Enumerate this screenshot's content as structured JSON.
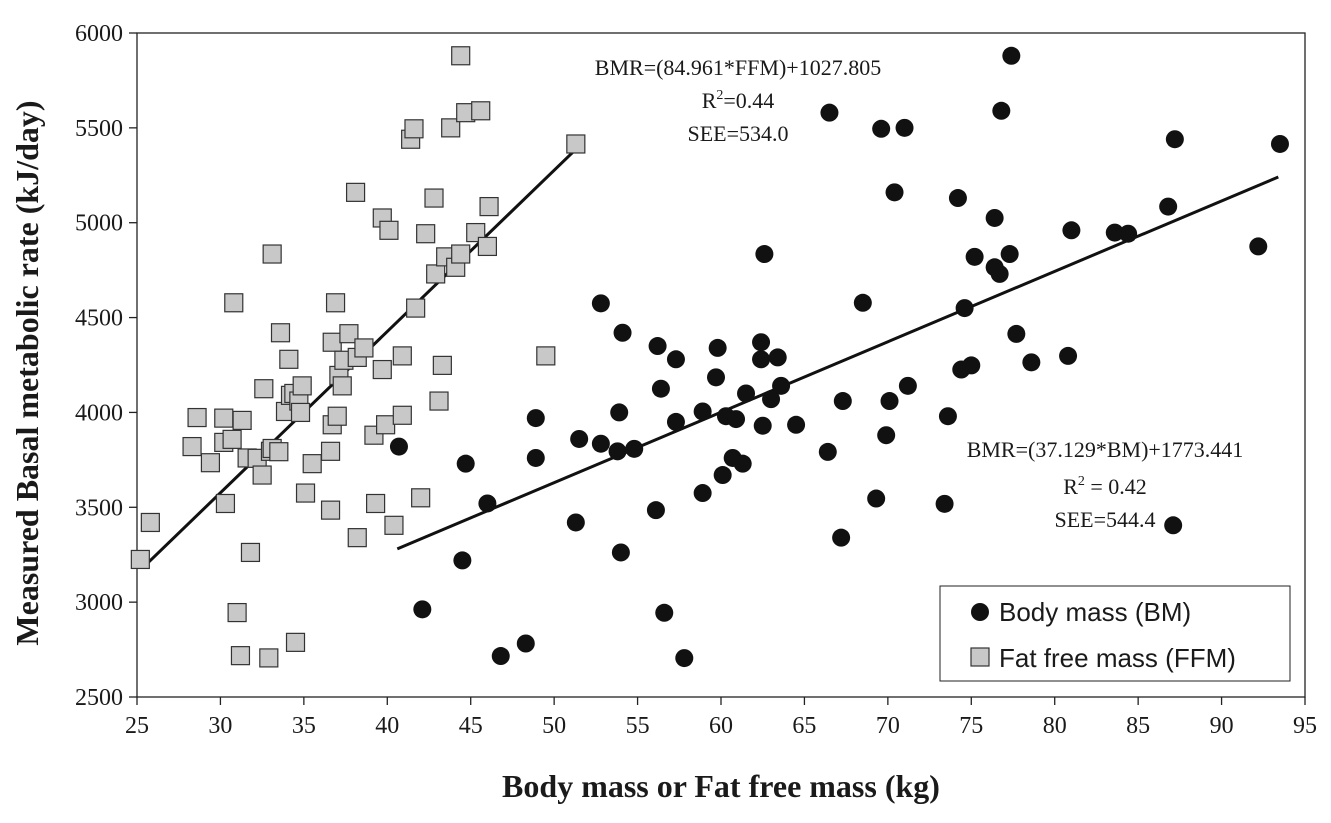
{
  "chart_data": {
    "type": "scatter",
    "xlabel": "Body mass or Fat free mass (kg)",
    "ylabel": "Measured Basal metabolic rate (kJ/day)",
    "xlim": [
      25,
      95
    ],
    "ylim": [
      2500,
      6000
    ],
    "x_ticks": [
      "25",
      "30",
      "35",
      "40",
      "45",
      "50",
      "55",
      "60",
      "65",
      "70",
      "75",
      "80",
      "85",
      "90",
      "95"
    ],
    "y_ticks": [
      "2500",
      "3000",
      "3500",
      "4000",
      "4500",
      "5000",
      "5500",
      "6000"
    ],
    "legend": [
      {
        "label": "Body mass (BM)",
        "marker": "circle",
        "color": "#111111"
      },
      {
        "label": "Fat free mass (FFM)",
        "marker": "square",
        "color": "#c8c8c8"
      }
    ],
    "annotations": {
      "ffm": {
        "eq": "BMR=(84.961*FFM)+1027.805",
        "r2_prefix": "R",
        "r2_sup": "2",
        "r2_value": "=0.44",
        "see": "SEE=534.0"
      },
      "bm": {
        "eq": "BMR=(37.129*BM)+1773.441",
        "r2_prefix": "R",
        "r2_sup": "2",
        "r2_value": " = 0.42",
        "see": "SEE=544.4"
      }
    },
    "trendlines": [
      {
        "series": "Fat free mass (FFM)",
        "x": [
          25.5,
          51.3
        ],
        "y": [
          3194,
          5387
        ]
      },
      {
        "series": "Body mass (BM)",
        "x": [
          40.6,
          93.4
        ],
        "y": [
          3281,
          5241
        ]
      }
    ],
    "series": [
      {
        "name": "Body mass (BM)",
        "marker": "circle",
        "points": [
          [
            40.7,
            3820
          ],
          [
            42.1,
            2962
          ],
          [
            44.5,
            3220
          ],
          [
            44.7,
            3730
          ],
          [
            46.0,
            3520
          ],
          [
            46.8,
            2716
          ],
          [
            48.3,
            2782
          ],
          [
            48.9,
            3970
          ],
          [
            48.9,
            3760
          ],
          [
            51.3,
            3420
          ],
          [
            51.5,
            3860
          ],
          [
            52.8,
            4575
          ],
          [
            52.8,
            3835
          ],
          [
            53.8,
            3795
          ],
          [
            53.9,
            4000
          ],
          [
            54.0,
            3262
          ],
          [
            54.1,
            4420
          ],
          [
            54.8,
            3808
          ],
          [
            56.1,
            3485
          ],
          [
            56.2,
            4350
          ],
          [
            56.4,
            4125
          ],
          [
            56.6,
            2944
          ],
          [
            57.3,
            4280
          ],
          [
            57.3,
            3950
          ],
          [
            57.8,
            2705
          ],
          [
            58.9,
            3575
          ],
          [
            58.9,
            4005
          ],
          [
            59.7,
            4185
          ],
          [
            59.8,
            4340
          ],
          [
            60.1,
            3670
          ],
          [
            60.3,
            3980
          ],
          [
            60.7,
            3760
          ],
          [
            60.9,
            3965
          ],
          [
            61.3,
            3730
          ],
          [
            61.5,
            4100
          ],
          [
            62.4,
            4280
          ],
          [
            62.4,
            4370
          ],
          [
            62.5,
            3930
          ],
          [
            62.6,
            4835
          ],
          [
            63.0,
            4070
          ],
          [
            63.4,
            4290
          ],
          [
            63.6,
            4140
          ],
          [
            64.5,
            3935
          ],
          [
            66.4,
            3792
          ],
          [
            66.5,
            5580
          ],
          [
            67.2,
            3340
          ],
          [
            67.3,
            4060
          ],
          [
            68.5,
            4578
          ],
          [
            69.3,
            3546
          ],
          [
            69.6,
            5495
          ],
          [
            69.9,
            3880
          ],
          [
            70.1,
            4060
          ],
          [
            70.4,
            5160
          ],
          [
            71.0,
            5500
          ],
          [
            71.2,
            4140
          ],
          [
            73.4,
            3518
          ],
          [
            73.6,
            3980
          ],
          [
            74.2,
            5130
          ],
          [
            74.4,
            4226
          ],
          [
            74.6,
            4550
          ],
          [
            75.0,
            4248
          ],
          [
            75.2,
            4820
          ],
          [
            76.4,
            5025
          ],
          [
            76.4,
            4765
          ],
          [
            76.7,
            4730
          ],
          [
            76.8,
            5590
          ],
          [
            77.3,
            4835
          ],
          [
            77.4,
            5880
          ],
          [
            77.7,
            4414
          ],
          [
            78.6,
            4264
          ],
          [
            80.8,
            4298
          ],
          [
            81.0,
            4960
          ],
          [
            83.6,
            4948
          ],
          [
            84.4,
            4942
          ],
          [
            86.8,
            5085
          ],
          [
            87.1,
            3405
          ],
          [
            87.2,
            5440
          ],
          [
            92.2,
            4875
          ],
          [
            93.5,
            5415
          ]
        ]
      },
      {
        "name": "Fat free mass (FFM)",
        "marker": "square",
        "points": [
          [
            25.2,
            3225
          ],
          [
            25.8,
            3420
          ],
          [
            28.3,
            3820
          ],
          [
            28.6,
            3973
          ],
          [
            29.4,
            3735
          ],
          [
            30.2,
            3842
          ],
          [
            30.2,
            3970
          ],
          [
            30.3,
            3520
          ],
          [
            30.7,
            3858
          ],
          [
            30.8,
            4578
          ],
          [
            31.0,
            2945
          ],
          [
            31.2,
            2718
          ],
          [
            31.3,
            3958
          ],
          [
            31.6,
            3760
          ],
          [
            31.8,
            3262
          ],
          [
            32.2,
            3758
          ],
          [
            32.5,
            3670
          ],
          [
            32.6,
            4125
          ],
          [
            32.9,
            2706
          ],
          [
            33.0,
            3795
          ],
          [
            33.1,
            3810
          ],
          [
            33.1,
            4835
          ],
          [
            33.5,
            3793
          ],
          [
            33.6,
            4420
          ],
          [
            33.9,
            4005
          ],
          [
            34.1,
            4280
          ],
          [
            34.2,
            4090
          ],
          [
            34.4,
            4100
          ],
          [
            34.5,
            2788
          ],
          [
            34.7,
            4060
          ],
          [
            34.8,
            4000
          ],
          [
            34.9,
            4140
          ],
          [
            35.1,
            3575
          ],
          [
            35.5,
            3730
          ],
          [
            36.6,
            3485
          ],
          [
            36.6,
            3795
          ],
          [
            36.7,
            3935
          ],
          [
            36.7,
            4370
          ],
          [
            36.9,
            4578
          ],
          [
            37.0,
            3980
          ],
          [
            37.1,
            4195
          ],
          [
            37.3,
            4140
          ],
          [
            37.4,
            4275
          ],
          [
            37.7,
            4415
          ],
          [
            38.1,
            5160
          ],
          [
            38.2,
            3340
          ],
          [
            38.2,
            4290
          ],
          [
            38.6,
            4340
          ],
          [
            39.2,
            3880
          ],
          [
            39.3,
            3520
          ],
          [
            39.7,
            4226
          ],
          [
            39.7,
            5025
          ],
          [
            39.9,
            3935
          ],
          [
            40.1,
            4960
          ],
          [
            40.4,
            3405
          ],
          [
            40.9,
            3985
          ],
          [
            40.9,
            4298
          ],
          [
            41.4,
            5440
          ],
          [
            41.6,
            5495
          ],
          [
            41.7,
            4550
          ],
          [
            42.0,
            3550
          ],
          [
            42.3,
            4942
          ],
          [
            42.8,
            5130
          ],
          [
            42.9,
            4730
          ],
          [
            43.1,
            4060
          ],
          [
            43.3,
            4248
          ],
          [
            43.5,
            4820
          ],
          [
            43.8,
            5500
          ],
          [
            44.1,
            4765
          ],
          [
            44.4,
            4835
          ],
          [
            44.4,
            5880
          ],
          [
            44.7,
            5580
          ],
          [
            45.3,
            4948
          ],
          [
            45.6,
            5590
          ],
          [
            46.0,
            4875
          ],
          [
            46.1,
            5085
          ],
          [
            49.5,
            4298
          ],
          [
            51.3,
            5415
          ]
        ]
      }
    ]
  }
}
